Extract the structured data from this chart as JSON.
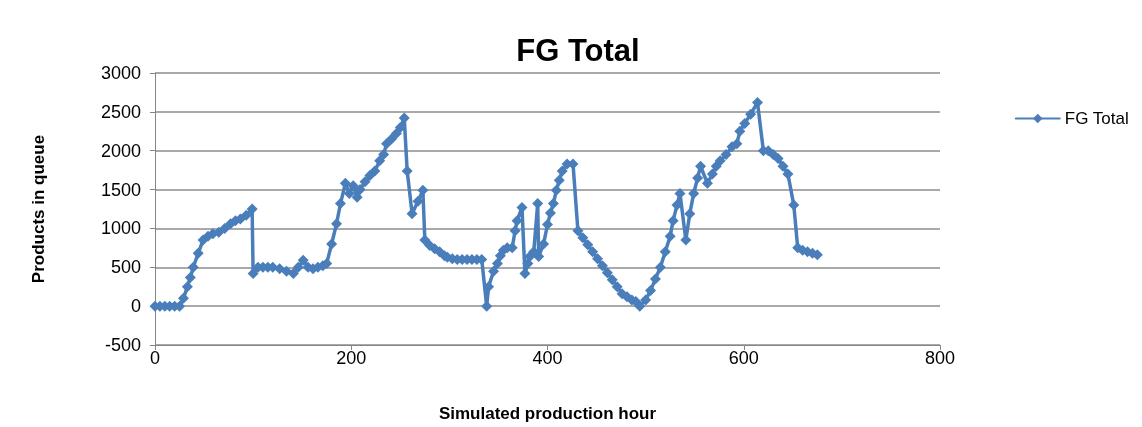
{
  "chart_data": {
    "type": "line",
    "title": "FG Total",
    "xlabel": "Simulated production hour",
    "ylabel": "Products in queue",
    "xlim": [
      0,
      800
    ],
    "xticks": [
      0,
      200,
      400,
      600,
      800
    ],
    "ylim": [
      -500,
      3000
    ],
    "yticks": [
      -500,
      0,
      500,
      1000,
      1500,
      2000,
      2500,
      3000
    ],
    "grid": "y",
    "legend": "right",
    "marker": "diamond",
    "line_style": "solid",
    "series": [
      {
        "name": "FG Total",
        "color": "#4a7ebb",
        "x": [
          0,
          5,
          10,
          15,
          20,
          25,
          29,
          33,
          36,
          39,
          44,
          49,
          54,
          59,
          65,
          71,
          77,
          82,
          87,
          93,
          99,
          100,
          105,
          110,
          115,
          120,
          127,
          134,
          141,
          146,
          151,
          156,
          161,
          166,
          171,
          175,
          180,
          185,
          189,
          194,
          198,
          202,
          206,
          209,
          214,
          219,
          224,
          229,
          233,
          236,
          241,
          246,
          250,
          254,
          257,
          262,
          268,
          273,
          275,
          280,
          285,
          290,
          295,
          298,
          303,
          308,
          313,
          318,
          323,
          328,
          333,
          338,
          340,
          345,
          349,
          352,
          355,
          359,
          364,
          367,
          369,
          374,
          377,
          380,
          382,
          386,
          390,
          391,
          396,
          400,
          403,
          406,
          409,
          412,
          415,
          420,
          426,
          431,
          436,
          441,
          446,
          451,
          456,
          461,
          466,
          471,
          476,
          481,
          486,
          490,
          494,
          500,
          505,
          510,
          515,
          520,
          525,
          528,
          532,
          535,
          541,
          545,
          549,
          553,
          556,
          563,
          568,
          572,
          576,
          582,
          588,
          593,
          596,
          601,
          607,
          614,
          620,
          625,
          630,
          635,
          640,
          645,
          651,
          655,
          660,
          665,
          670,
          675
        ],
        "values": [
          0,
          0,
          0,
          0,
          0,
          0,
          100,
          250,
          370,
          500,
          680,
          850,
          900,
          930,
          950,
          1000,
          1060,
          1100,
          1120,
          1170,
          1250,
          420,
          500,
          500,
          500,
          500,
          480,
          450,
          420,
          500,
          590,
          500,
          480,
          500,
          520,
          550,
          800,
          1060,
          1320,
          1580,
          1450,
          1550,
          1400,
          1500,
          1600,
          1680,
          1740,
          1870,
          1950,
          2090,
          2150,
          2220,
          2300,
          2420,
          1740,
          1190,
          1350,
          1490,
          850,
          780,
          740,
          700,
          650,
          630,
          610,
          600,
          600,
          600,
          600,
          600,
          600,
          0,
          250,
          450,
          550,
          650,
          720,
          750,
          750,
          970,
          1100,
          1270,
          420,
          550,
          640,
          700,
          1320,
          640,
          800,
          1050,
          1200,
          1320,
          1490,
          1620,
          1740,
          1830,
          1830,
          970,
          880,
          790,
          700,
          610,
          520,
          430,
          340,
          250,
          160,
          120,
          80,
          60,
          0,
          80,
          200,
          350,
          500,
          700,
          900,
          1100,
          1300,
          1450,
          850,
          1190,
          1450,
          1650,
          1800,
          1580,
          1700,
          1800,
          1870,
          1950,
          2050,
          2090,
          2250,
          2350,
          2470,
          2620,
          2000,
          2000,
          1950,
          1900,
          1800,
          1700,
          1300,
          750,
          720,
          700,
          680,
          660
        ]
      }
    ]
  }
}
